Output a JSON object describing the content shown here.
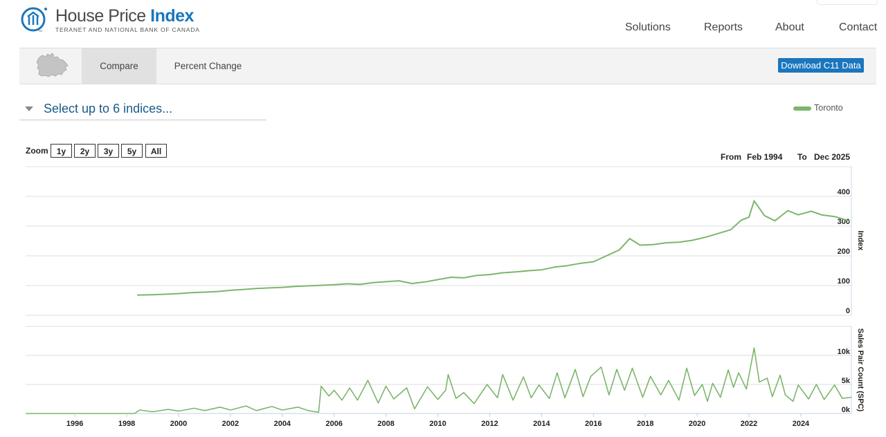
{
  "header": {
    "logo_title_main": "House Price ",
    "logo_title_accent": "Index",
    "logo_subtitle": "TERANET AND NATIONAL BANK OF CANADA",
    "logo_tm": "TM",
    "nav": [
      "Solutions",
      "Reports",
      "About",
      "Contact"
    ]
  },
  "toolbar": {
    "tabs": [
      "Compare",
      "Percent Change"
    ],
    "download_label": "Download C11 Data"
  },
  "selector": {
    "placeholder": "Select up to 6 indices..."
  },
  "legend": {
    "series_name": "Toronto",
    "color": "#7cb56b"
  },
  "zoom": {
    "label": "Zoom",
    "buttons": [
      "1y",
      "2y",
      "3y",
      "5y",
      "All"
    ]
  },
  "range": {
    "from_label": "From",
    "from_value": "Feb 1994",
    "to_label": "To",
    "to_value": "Dec 2025"
  },
  "colors": {
    "accent": "#1a76bd",
    "series": "#7cb56b"
  },
  "chart_data": [
    {
      "type": "line",
      "ylabel": "Index",
      "ylim": [
        0,
        400
      ],
      "yticks": [
        0,
        100,
        200,
        300,
        400
      ],
      "xlim": [
        1994.1,
        2025.95
      ],
      "grid": true,
      "series": [
        {
          "name": "Toronto",
          "x": [
            1998.4,
            1999.0,
            1999.5,
            2000.0,
            2000.5,
            2001.0,
            2001.5,
            2002.0,
            2002.5,
            2003.0,
            2003.5,
            2004.0,
            2004.5,
            2005.0,
            2005.5,
            2006.0,
            2006.5,
            2007.0,
            2007.5,
            2008.0,
            2008.5,
            2009.0,
            2009.5,
            2010.0,
            2010.5,
            2011.0,
            2011.5,
            2012.0,
            2012.5,
            2013.0,
            2013.5,
            2014.0,
            2014.5,
            2015.0,
            2015.5,
            2016.0,
            2016.5,
            2017.0,
            2017.4,
            2017.8,
            2018.3,
            2018.8,
            2019.3,
            2019.8,
            2020.3,
            2020.8,
            2021.3,
            2021.7,
            2022.0,
            2022.2,
            2022.6,
            2023.0,
            2023.5,
            2023.9,
            2024.4,
            2024.8,
            2025.3,
            2025.9
          ],
          "y": [
            68,
            69,
            71,
            73,
            76,
            78,
            80,
            84,
            87,
            90,
            92,
            94,
            97,
            99,
            101,
            103,
            106,
            104,
            110,
            113,
            116,
            107,
            112,
            120,
            128,
            126,
            134,
            137,
            143,
            146,
            150,
            153,
            162,
            167,
            175,
            180,
            200,
            220,
            258,
            236,
            238,
            244,
            246,
            252,
            262,
            275,
            288,
            320,
            330,
            385,
            335,
            318,
            352,
            338,
            350,
            338,
            332,
            317
          ]
        }
      ]
    },
    {
      "type": "line",
      "ylabel": "Sales Pair Count (SPC)",
      "ylim": [
        0,
        15000
      ],
      "yticks": [
        "0k",
        "5k",
        "10k"
      ],
      "ytick_values": [
        0,
        5000,
        10000
      ],
      "xlim": [
        1994.1,
        2025.95
      ],
      "xticks": [
        "1996",
        "1998",
        "2000",
        "2002",
        "2004",
        "2006",
        "2008",
        "2010",
        "2012",
        "2014",
        "2016",
        "2018",
        "2020",
        "2022",
        "2024"
      ],
      "xtick_values": [
        1996,
        1998,
        2000,
        2002,
        2004,
        2006,
        2008,
        2010,
        2012,
        2014,
        2016,
        2018,
        2020,
        2022,
        2024
      ],
      "grid": true,
      "series": [
        {
          "name": "Toronto",
          "x": [
            1994.1,
            1998.3,
            1998.5,
            1999.0,
            1999.6,
            2000.0,
            2000.6,
            2001.0,
            2001.6,
            2002.0,
            2002.6,
            2003.0,
            2003.6,
            2004.0,
            2004.6,
            2005.0,
            2005.4,
            2005.5,
            2005.8,
            2006.0,
            2006.3,
            2006.6,
            2006.9,
            2007.3,
            2007.7,
            2008.0,
            2008.3,
            2008.8,
            2009.1,
            2009.6,
            2010.0,
            2010.3,
            2010.4,
            2010.7,
            2011.0,
            2011.4,
            2011.9,
            2012.3,
            2012.5,
            2012.9,
            2013.3,
            2013.6,
            2013.9,
            2014.3,
            2014.6,
            2014.9,
            2015.3,
            2015.6,
            2015.9,
            2016.3,
            2016.6,
            2016.9,
            2017.2,
            2017.5,
            2017.9,
            2018.2,
            2018.6,
            2018.9,
            2019.3,
            2019.6,
            2019.9,
            2020.2,
            2020.4,
            2020.6,
            2020.9,
            2021.2,
            2021.4,
            2021.6,
            2021.9,
            2022.2,
            2022.4,
            2022.7,
            2022.9,
            2023.2,
            2023.4,
            2023.7,
            2023.9,
            2024.3,
            2024.6,
            2024.9,
            2025.3,
            2025.6,
            2025.95
          ],
          "y": [
            0,
            0,
            600,
            300,
            700,
            400,
            900,
            500,
            1100,
            600,
            1300,
            500,
            1200,
            600,
            1100,
            500,
            200,
            4700,
            3000,
            4000,
            2300,
            4400,
            2300,
            5700,
            1800,
            4700,
            2500,
            4400,
            800,
            4600,
            2400,
            4000,
            6700,
            2600,
            3600,
            1700,
            5000,
            2700,
            6700,
            2300,
            6300,
            2700,
            4900,
            2600,
            7000,
            2700,
            7600,
            2900,
            6400,
            8000,
            3200,
            7600,
            4000,
            7800,
            2800,
            6400,
            3200,
            5700,
            2300,
            7800,
            3100,
            5000,
            2100,
            5200,
            2800,
            7500,
            4500,
            7000,
            4200,
            11300,
            5400,
            6100,
            2900,
            6600,
            3200,
            2100,
            4900,
            2500,
            5000,
            2400,
            4900,
            2600,
            2800
          ]
        }
      ]
    }
  ]
}
